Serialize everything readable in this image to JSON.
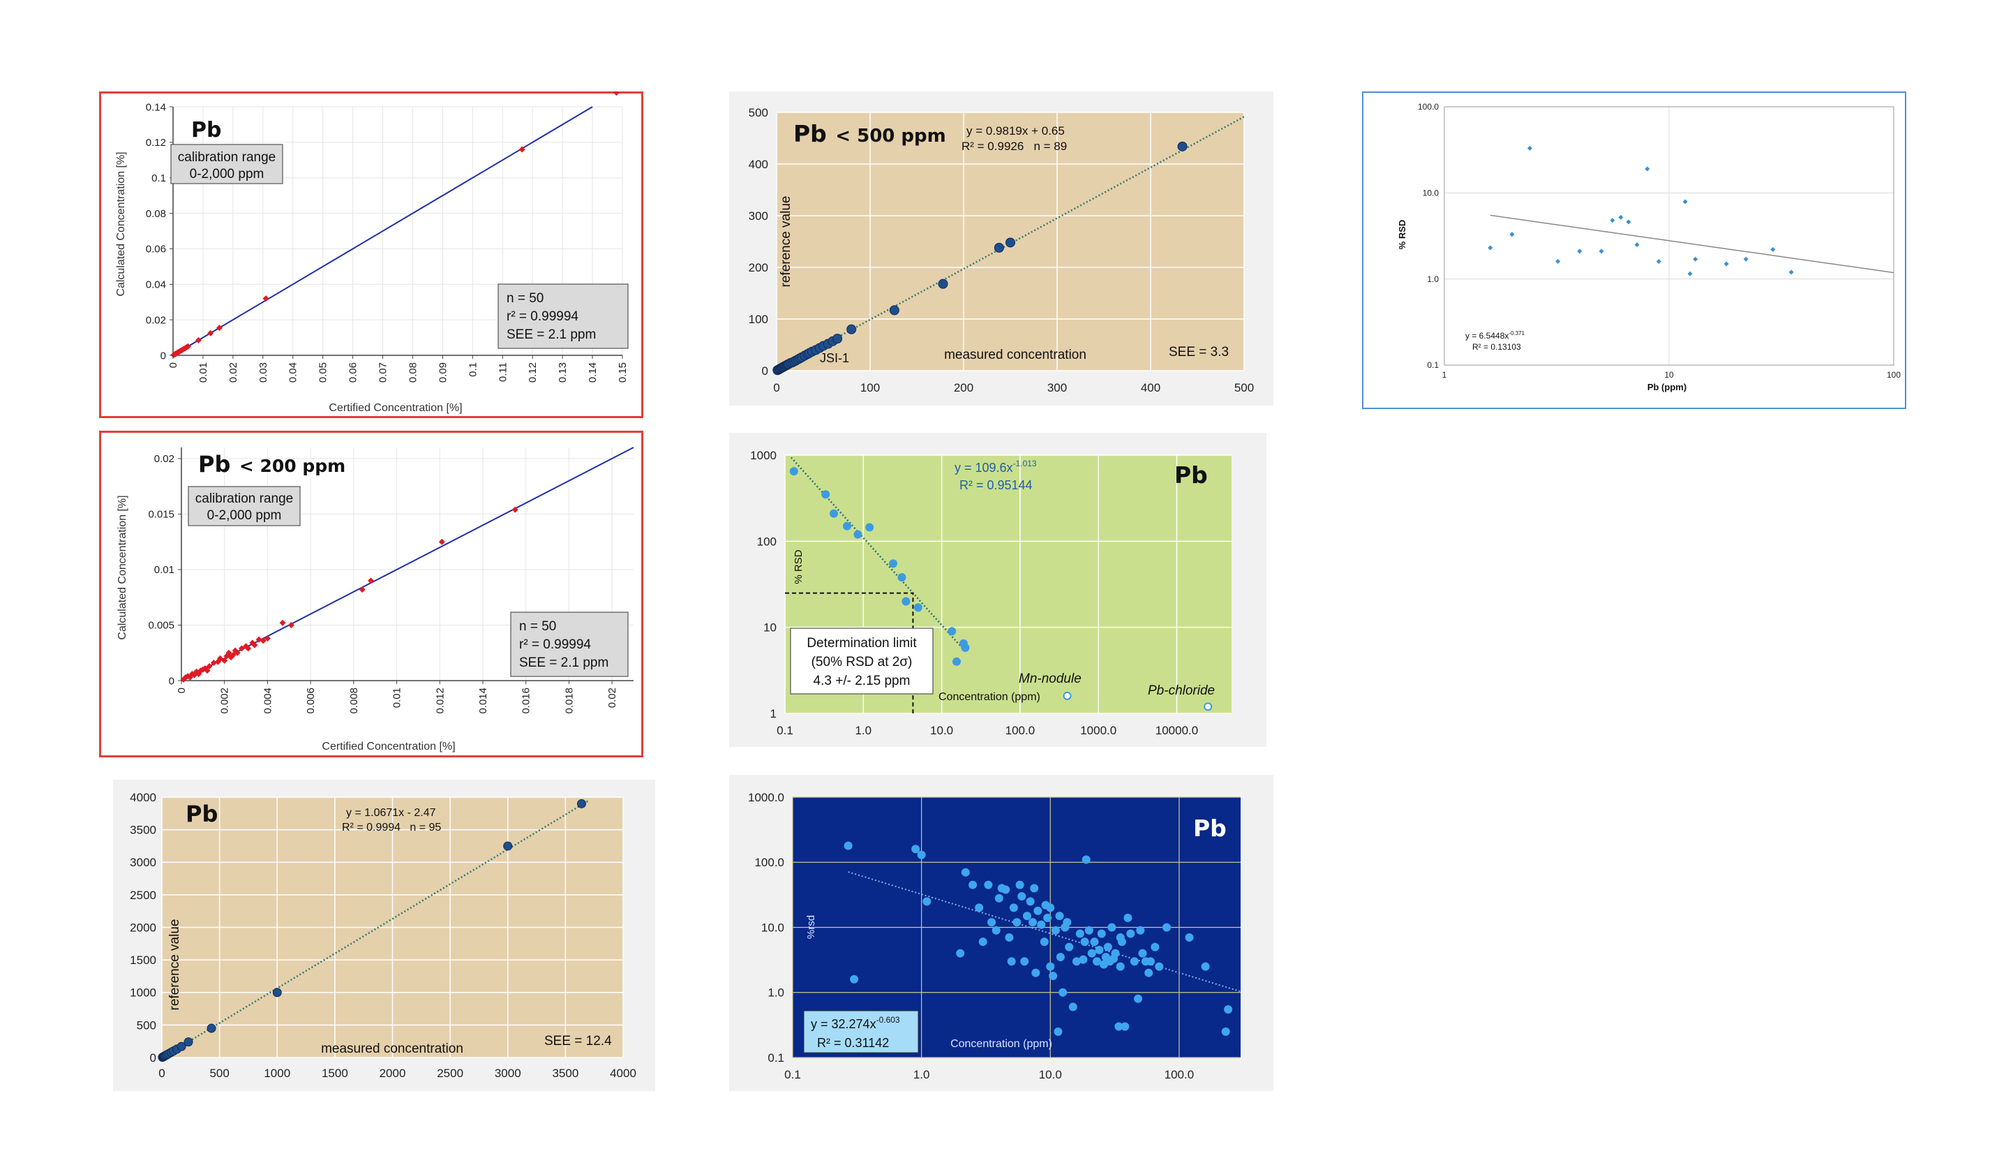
{
  "chart_data": [
    {
      "type": "scatter",
      "title": "Pb",
      "xlabel": "Certified Concentration [%]",
      "ylabel": "Calculated Concentration [%]",
      "xlim": [
        0,
        0.15
      ],
      "ylim": [
        0,
        0.14
      ],
      "x_ticks": [
        "0",
        "0.01",
        "0.02",
        "0.03",
        "0.04",
        "0.05",
        "0.06",
        "0.07",
        "0.08",
        "0.09",
        "0.1",
        "0.11",
        "0.12",
        "0.13",
        "0.14",
        "0.15"
      ],
      "y_ticks": [
        "0",
        "0.02",
        "0.04",
        "0.06",
        "0.08",
        "0.1",
        "0.12",
        "0.14"
      ],
      "calibration_box": [
        "calibration range",
        "0-2,000 ppm"
      ],
      "stats_box": [
        "n = 50",
        "r² = 0.99994",
        "SEE = 2.1 ppm"
      ],
      "fit": {
        "slope": 1.0,
        "intercept": 0
      },
      "colors": {
        "points": "#e01b24",
        "line": "#1f2fa8",
        "border": "#e0403a"
      },
      "points": {
        "x": [
          0.0002,
          0.0005,
          0.0008,
          0.001,
          0.0013,
          0.0016,
          0.0019,
          0.0022,
          0.0026,
          0.003,
          0.0035,
          0.004,
          0.0045,
          0.005,
          0.0085,
          0.0125,
          0.0155,
          0.031,
          0.1165,
          0.148
        ],
        "y": [
          0.0002,
          0.0005,
          0.0008,
          0.001,
          0.0013,
          0.0016,
          0.0019,
          0.0022,
          0.0026,
          0.003,
          0.0035,
          0.004,
          0.0045,
          0.005,
          0.0085,
          0.0125,
          0.0155,
          0.032,
          0.116,
          0.148
        ]
      }
    },
    {
      "type": "scatter",
      "title": "Pb",
      "title_suffix": "< 200 ppm",
      "xlabel": "Certified Concentration [%]",
      "ylabel": "Calculated Concentration [%]",
      "xlim": [
        0,
        0.021
      ],
      "ylim": [
        0,
        0.021
      ],
      "x_ticks": [
        "0",
        "0.002",
        "0.004",
        "0.006",
        "0.008",
        "0.01",
        "0.012",
        "0.014",
        "0.016",
        "0.018",
        "0.02"
      ],
      "y_ticks": [
        "0",
        "0.005",
        "0.01",
        "0.015",
        "0.02"
      ],
      "calibration_box": [
        "calibration range",
        "0-2,000 ppm"
      ],
      "stats_box": [
        "n = 50",
        "r² = 0.99994",
        "SEE = 2.1 ppm"
      ],
      "fit": {
        "slope": 1.0,
        "intercept": 0
      },
      "colors": {
        "points": "#e01b24",
        "line": "#1f2fa8",
        "border": "#e0403a"
      },
      "points": {
        "x": [
          0.0001,
          0.0002,
          0.0003,
          0.0004,
          0.0005,
          0.0006,
          0.0007,
          0.0008,
          0.0009,
          0.001,
          0.0011,
          0.0012,
          0.0013,
          0.0015,
          0.0017,
          0.0018,
          0.002,
          0.0021,
          0.0022,
          0.0023,
          0.0024,
          0.0025,
          0.0026,
          0.0028,
          0.003,
          0.0031,
          0.0033,
          0.0034,
          0.0036,
          0.0038,
          0.004,
          0.0047,
          0.0051,
          0.0084,
          0.0088,
          0.0121,
          0.0155
        ],
        "y": [
          0.0001,
          0.0003,
          0.0004,
          0.0003,
          0.0006,
          0.0005,
          0.0008,
          0.0006,
          0.0009,
          0.001,
          0.0011,
          0.0009,
          0.0013,
          0.0016,
          0.0017,
          0.002,
          0.0018,
          0.0022,
          0.0025,
          0.0021,
          0.0023,
          0.0027,
          0.0025,
          0.0029,
          0.0031,
          0.0029,
          0.0034,
          0.0032,
          0.0037,
          0.0036,
          0.0038,
          0.0052,
          0.005,
          0.0082,
          0.009,
          0.0125,
          0.0154
        ]
      }
    },
    {
      "type": "scatter",
      "title": "Pb",
      "xlabel": "measured concentration",
      "ylabel": "reference value",
      "xlim": [
        0,
        4000
      ],
      "ylim": [
        0,
        4000
      ],
      "x_ticks": [
        "0",
        "500",
        "1000",
        "1500",
        "2000",
        "2500",
        "3000",
        "3500",
        "4000"
      ],
      "y_ticks": [
        "0",
        "500",
        "1000",
        "1500",
        "2000",
        "2500",
        "3000",
        "3500",
        "4000"
      ],
      "equation": "y = 1.0671x - 2.47",
      "r2_line": "R² = 0.9994   n = 95",
      "see": "SEE = 12.4",
      "fit": {
        "slope": 1.0671,
        "intercept": -2.47
      },
      "colors": {
        "background": "#e5d0ac",
        "points": "#1f4e8c",
        "trend": "#2e7a6e"
      },
      "points": {
        "x": [
          5,
          10,
          15,
          20,
          25,
          35,
          45,
          60,
          80,
          100,
          130,
          170,
          230,
          430,
          1000,
          3000,
          3640
        ],
        "y": [
          5,
          10,
          15,
          20,
          25,
          35,
          45,
          60,
          80,
          100,
          130,
          170,
          240,
          450,
          1000,
          3250,
          3900
        ]
      }
    },
    {
      "type": "scatter",
      "title": "Pb",
      "title_suffix": "< 500 ppm",
      "xlabel": "measured concentration",
      "ylabel": "reference value",
      "xlim": [
        0,
        500
      ],
      "ylim": [
        0,
        500
      ],
      "x_ticks": [
        "0",
        "100",
        "200",
        "300",
        "400",
        "500"
      ],
      "y_ticks": [
        "0",
        "100",
        "200",
        "300",
        "400",
        "500"
      ],
      "equation": "y = 0.9819x + 0.65",
      "r2_line": "R² = 0.9926   n = 89",
      "see": "SEE = 3.3",
      "annotation": "JSI-1",
      "fit": {
        "slope": 0.9819,
        "intercept": 0.65
      },
      "colors": {
        "background": "#e5d0ac",
        "points": "#1f4e8c",
        "trend": "#2e7a6e"
      },
      "points": {
        "x": [
          1,
          2,
          3,
          4,
          5,
          6,
          7,
          8,
          9,
          10,
          11,
          12,
          13,
          15,
          17,
          19,
          21,
          23,
          25,
          27,
          30,
          33,
          35,
          38,
          42,
          46,
          50,
          55,
          60,
          65,
          80,
          126,
          178,
          238,
          250,
          434
        ],
        "y": [
          1,
          2,
          3,
          4,
          5,
          6,
          7,
          8,
          9,
          10,
          11,
          12,
          13,
          15,
          16,
          18,
          20,
          22,
          24,
          26,
          29,
          32,
          34,
          37,
          40,
          44,
          48,
          52,
          57,
          62,
          80,
          117,
          168,
          238,
          248,
          434
        ]
      }
    },
    {
      "type": "scatter",
      "title": "Pb",
      "xlabel": "Concentration (ppm)",
      "ylabel": "% RSD",
      "x_scale": "log",
      "y_scale": "log",
      "xlim": [
        0.1,
        50000
      ],
      "ylim": [
        1,
        1000
      ],
      "x_ticks": [
        "0.1",
        "1.0",
        "10.0",
        "100.0",
        "1000.0",
        "10000.0"
      ],
      "y_ticks": [
        "1",
        "10",
        "100",
        "1000"
      ],
      "equation": "y = 109.6x",
      "equation_exponent": "-1.013",
      "r2_line": "R² = 0.95144",
      "determination_box": [
        "Determination limit",
        "(50% RSD at 2σ)",
        "4.3 +/- 2.15 ppm"
      ],
      "outlier_labels": [
        "Mn-nodule",
        "Pb-chloride"
      ],
      "fit": {
        "coef": 109.6,
        "exp": -1.013
      },
      "colors": {
        "background": "#cadf8d",
        "points": "#3c9be0",
        "trend": "#2e6e7a",
        "equation_text": "#1f5fa8"
      },
      "points": {
        "x": [
          0.13,
          0.33,
          0.42,
          0.62,
          0.85,
          1.2,
          2.4,
          3.1,
          3.5,
          5.0,
          13.5,
          15.5,
          19.0,
          20.0
        ],
        "y": [
          650,
          350,
          210,
          150,
          120,
          145,
          55,
          38,
          20,
          17,
          9,
          4,
          6.5,
          5.8
        ]
      },
      "outliers": {
        "x": [
          400,
          25000
        ],
        "y": [
          1.6,
          1.2
        ]
      }
    },
    {
      "type": "scatter",
      "title": "Pb",
      "xlabel": "Concentration (ppm)",
      "ylabel": "%rsd",
      "x_scale": "log",
      "y_scale": "log",
      "xlim": [
        0.1,
        300
      ],
      "ylim": [
        0.1,
        1000
      ],
      "x_ticks": [
        "0.1",
        "1.0",
        "10.0",
        "100.0"
      ],
      "y_ticks": [
        "0.1",
        "1.0",
        "10.0",
        "100.0",
        "1000.0"
      ],
      "equation": "y = 32.274x",
      "equation_exponent": "-0.603",
      "r2_line": "R² = 0.31142",
      "fit": {
        "coef": 32.274,
        "exp": -0.603
      },
      "colors": {
        "background": "#08288a",
        "points": "#3ea6ee",
        "trend": "#7fb0e8",
        "grid": "#c9c98a",
        "box": "#a6dcf8"
      },
      "points": {
        "x": [
          0.27,
          0.3,
          0.9,
          1.0,
          1.1,
          2.0,
          2.2,
          2.5,
          2.8,
          3.0,
          3.3,
          3.5,
          3.8,
          4.0,
          4.2,
          4.5,
          4.8,
          5.0,
          5.2,
          5.5,
          5.8,
          6.0,
          6.3,
          6.6,
          7.0,
          7.3,
          7.7,
          8.0,
          8.5,
          9.0,
          9.5,
          10,
          10.5,
          11,
          11.5,
          12,
          13,
          14,
          15,
          16,
          17,
          18,
          19,
          20,
          21,
          22,
          23,
          24,
          25,
          26,
          27,
          28,
          29,
          30,
          31,
          32,
          34,
          35,
          36,
          38,
          40,
          42,
          45,
          48,
          50,
          52,
          55,
          58,
          60,
          65,
          70,
          80,
          120,
          160,
          230,
          240,
          7.5,
          9.2,
          11.8,
          13.5,
          18.5,
          35,
          10.0,
          12.5
        ],
        "y": [
          180,
          1.6,
          160,
          130,
          25,
          4,
          70,
          45,
          20,
          6,
          45,
          12,
          9,
          28,
          40,
          38,
          7,
          3,
          20,
          12,
          45,
          30,
          3,
          15,
          25,
          12,
          2,
          18,
          11,
          6,
          14,
          20,
          1.8,
          9,
          0.25,
          3.5,
          10,
          5,
          0.6,
          3,
          8,
          3.2,
          110,
          9,
          4,
          6,
          3,
          4.5,
          8,
          2.7,
          3.5,
          5,
          3,
          10,
          3.3,
          4,
          0.3,
          2.5,
          6,
          0.3,
          14,
          8,
          3,
          0.8,
          9,
          4,
          3,
          2,
          3,
          5,
          2.5,
          10,
          7,
          2.5,
          0.25,
          0.55,
          40,
          22,
          15,
          12,
          6,
          7,
          2.5,
          1.0
        ]
      }
    },
    {
      "type": "scatter",
      "xlabel": "Pb (ppm)",
      "ylabel": "% RSD",
      "x_scale": "log",
      "y_scale": "log",
      "xlim": [
        1,
        100
      ],
      "ylim": [
        0.1,
        100
      ],
      "x_ticks": [
        "1",
        "10",
        "100"
      ],
      "y_ticks": [
        "0.1",
        "1.0",
        "10.0",
        "100.0"
      ],
      "equation": "y = 6.5448x",
      "equation_exponent": "-0.371",
      "r2_line": "R² = 0.13103",
      "fit": {
        "coef": 6.5448,
        "exp": -0.371
      },
      "colors": {
        "points": "#3c8fd4",
        "trend": "#8a8a8a",
        "border": "#4f8fd4"
      },
      "points": {
        "x": [
          1.6,
          2.0,
          2.4,
          3.2,
          4.0,
          5.0,
          5.6,
          6.1,
          6.6,
          7.2,
          8.0,
          9.0,
          11.8,
          12.4,
          13.1,
          18.0,
          22.0,
          29.0,
          35.0
        ],
        "y": [
          2.3,
          3.3,
          33,
          1.6,
          2.1,
          2.1,
          4.8,
          5.2,
          4.6,
          2.5,
          19,
          1.6,
          7.9,
          1.15,
          1.7,
          1.5,
          1.7,
          2.2,
          1.2
        ]
      }
    }
  ]
}
